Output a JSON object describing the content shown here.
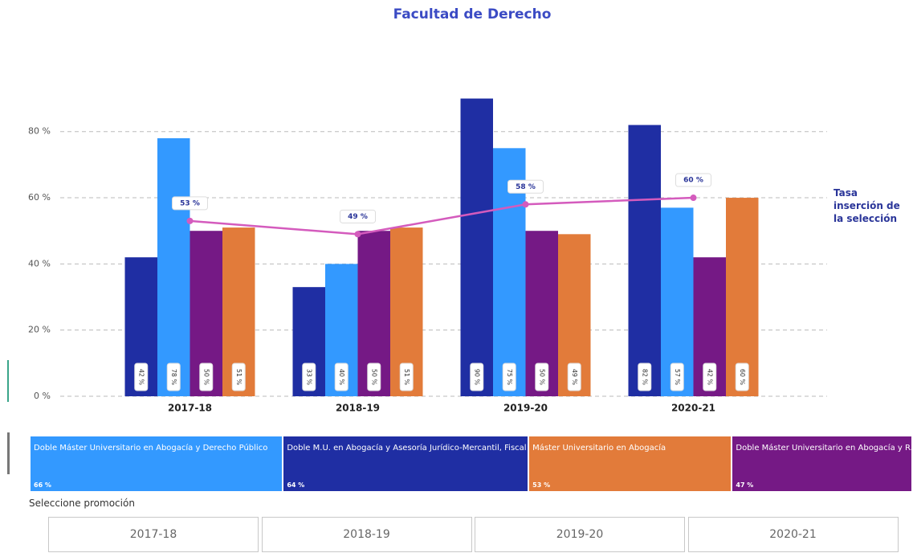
{
  "chart_data": {
    "type": "bar",
    "title": "Facultad de Derecho",
    "categories": [
      "2017-18",
      "2018-19",
      "2019-20",
      "2020-21"
    ],
    "ylim": [
      0,
      95
    ],
    "yticks": [
      {
        "value": 0,
        "label": "0 %"
      },
      {
        "value": 20,
        "label": "20 %"
      },
      {
        "value": 40,
        "label": "40 %"
      },
      {
        "value": 60,
        "label": "60 %"
      },
      {
        "value": 80,
        "label": "80 %"
      }
    ],
    "grid": true,
    "series": [
      {
        "name": "Doble Máster Universitario en Abogacía y Derecho Público",
        "color": "#3399ff",
        "values": [
          78,
          40,
          75,
          57
        ],
        "value_labels": [
          "78 %",
          "40 %",
          "75 %",
          "57 %"
        ],
        "summary": 66,
        "summary_label": "66 %"
      },
      {
        "name": "Doble M.U. en Abogacía y Asesoría Jurídico-Mercantil, Fiscal ...",
        "color": "#1f2ea3",
        "values": [
          42,
          33,
          90,
          82
        ],
        "value_labels": [
          "42 %",
          "33 %",
          "90 %",
          "82 %"
        ],
        "summary": 64,
        "summary_label": "64 %"
      },
      {
        "name": "Máster Universitario en Abogacía",
        "color": "#e27b3a",
        "values": [
          51,
          51,
          49,
          60
        ],
        "value_labels": [
          "51 %",
          "51 %",
          "49 %",
          "60 %"
        ],
        "summary": 53,
        "summary_label": "53 %"
      },
      {
        "name": "Doble Máster Universitario en Abogacía y R...",
        "color": "#751985",
        "values": [
          50,
          50,
          50,
          42
        ],
        "value_labels": [
          "50 %",
          "50 %",
          "50 %",
          "42 %"
        ],
        "summary": 47,
        "summary_label": "47 %"
      }
    ],
    "line": {
      "name": "Tasa inserción de la selección",
      "color": "#d45bbd",
      "values": [
        53,
        49,
        58,
        60
      ],
      "value_labels": [
        "53 %",
        "49 %",
        "58 %",
        "60 %"
      ]
    }
  },
  "slicer": {
    "title": "Seleccione promoción"
  }
}
